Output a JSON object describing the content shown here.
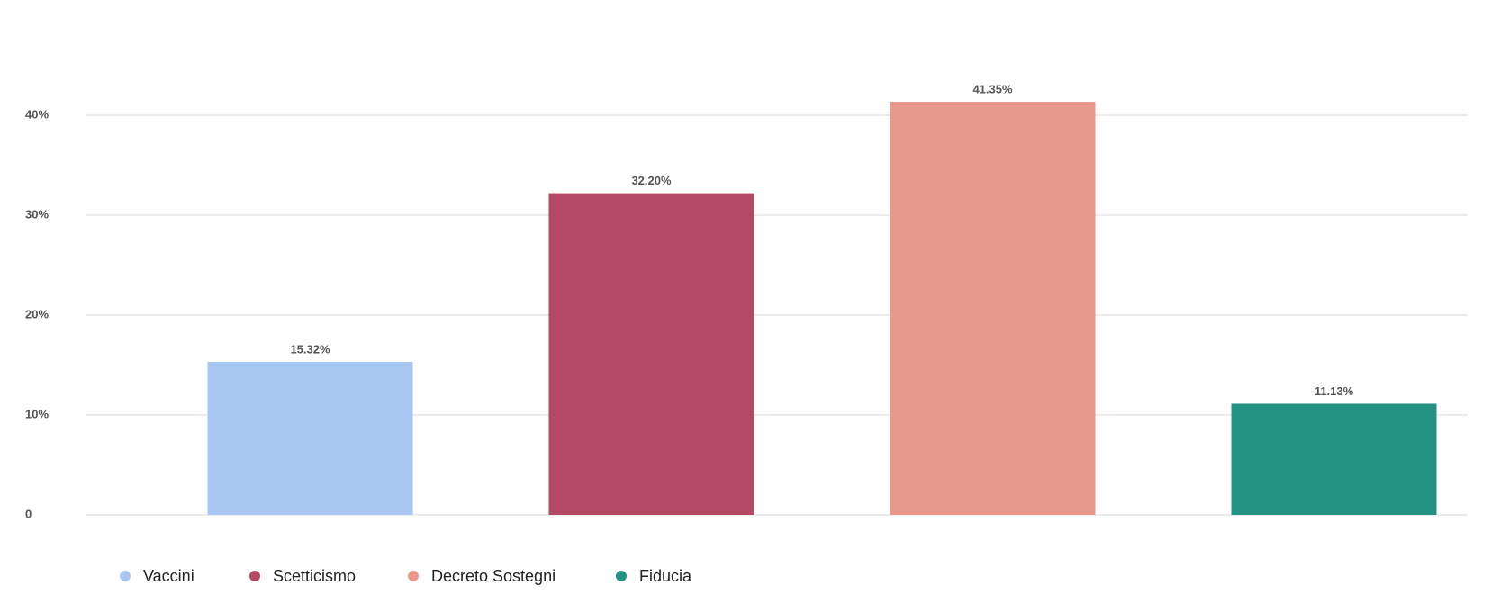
{
  "chart_data": {
    "type": "bar",
    "categories": [
      "Vaccini",
      "Scetticismo",
      "Decreto Sostegni",
      "Fiducia"
    ],
    "values": [
      15.32,
      32.2,
      41.35,
      11.13
    ],
    "value_labels": [
      "15.32%",
      "32.20%",
      "41.35%",
      "11.13%"
    ],
    "colors": [
      "#a8c6f2",
      "#b34a63",
      "#e8998b",
      "#249282"
    ],
    "ylim": [
      0,
      45
    ],
    "yticks": [
      0,
      {
        "value": 10,
        "label": "10%"
      },
      {
        "value": 20,
        "label": "20%"
      },
      {
        "value": 30,
        "label": "30%"
      },
      {
        "value": 40,
        "label": "40%"
      }
    ],
    "grid": true,
    "legend": "bottom"
  }
}
